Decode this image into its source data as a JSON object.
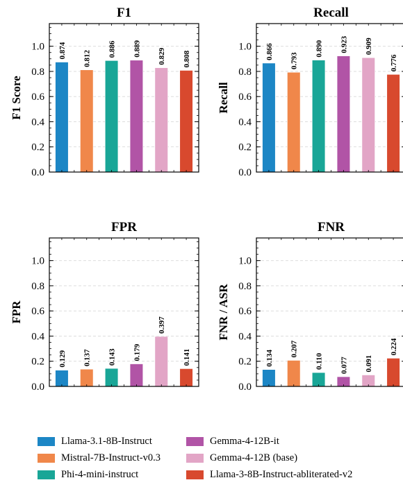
{
  "chart_data": {
    "type": "bar",
    "categories": [
      "Llama-3.1-8B-Instruct",
      "Mistral-7B-Instruct-v0.3",
      "Phi-4-mini-instruct",
      "Gemma-4-12B-it",
      "Gemma-4-12B (base)",
      "Llama-3-8B-Instruct-abliterated-v2"
    ],
    "colors": [
      "#1c86c5",
      "#f0874a",
      "#19a697",
      "#b154a6",
      "#e2a5c6",
      "#d8492e"
    ],
    "ylim": [
      0,
      1.18
    ],
    "yticks": [
      "0.0",
      "0.2",
      "0.4",
      "0.6",
      "0.8",
      "1.0"
    ],
    "grid": true,
    "legend_position": "bottom",
    "panels": [
      {
        "title": "F1",
        "ylabel": "F1 Score",
        "values": [
          0.874,
          0.812,
          0.886,
          0.889,
          0.829,
          0.808
        ],
        "labels": [
          "0.874",
          "0.812",
          "0.886",
          "0.889",
          "0.829",
          "0.808"
        ]
      },
      {
        "title": "Recall",
        "ylabel": "Recall",
        "values": [
          0.866,
          0.793,
          0.89,
          0.923,
          0.909,
          0.776
        ],
        "labels": [
          "0.866",
          "0.793",
          "0.890",
          "0.923",
          "0.909",
          "0.776"
        ]
      },
      {
        "title": "FPR",
        "ylabel": "FPR",
        "values": [
          0.129,
          0.137,
          0.143,
          0.179,
          0.397,
          0.141
        ],
        "labels": [
          "0.129",
          "0.137",
          "0.143",
          "0.179",
          "0.397",
          "0.141"
        ]
      },
      {
        "title": "FNR",
        "ylabel": "FNR / ASR",
        "values": [
          0.134,
          0.207,
          0.11,
          0.077,
          0.091,
          0.224
        ],
        "labels": [
          "0.134",
          "0.207",
          "0.110",
          "0.077",
          "0.091",
          "0.224"
        ]
      }
    ]
  }
}
